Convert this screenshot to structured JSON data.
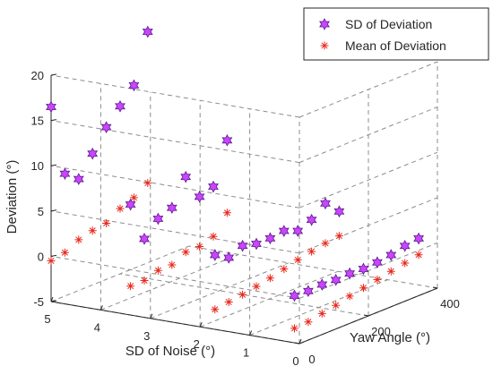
{
  "chart_data": {
    "type": "scatter",
    "projection": "3d",
    "title": "",
    "xlabel": "SD of Noise (°)",
    "ylabel": "Yaw Angle (°)",
    "zlabel": "Deviation (°)",
    "xlim": [
      0,
      5
    ],
    "ylim": [
      0,
      400
    ],
    "zlim": [
      -5,
      20
    ],
    "xticks": [
      "0",
      "1",
      "2",
      "3",
      "4",
      "5"
    ],
    "yticks": [
      "0",
      "200",
      "400"
    ],
    "zticks": [
      "-5",
      "0",
      "5",
      "10",
      "15",
      "20"
    ],
    "grid": true,
    "legend_position": "top-right",
    "colors": {
      "sd": "#cc44ff",
      "sd_edge": "#5a1a8c",
      "mean": "#e8291c",
      "axis": "#262626",
      "grid": "#8c8c8c"
    },
    "series": [
      {
        "name": "SD of Deviation",
        "marker": "hexagram",
        "points": [
          [
            5,
            0,
            16.5
          ],
          [
            5,
            40,
            8.5
          ],
          [
            5,
            80,
            7.3
          ],
          [
            5,
            120,
            9.5
          ],
          [
            5,
            160,
            11.8
          ],
          [
            5,
            200,
            13.5
          ],
          [
            5,
            240,
            15.2
          ],
          [
            5,
            280,
            20.5
          ],
          [
            3.4,
            0,
            7.2
          ],
          [
            3.4,
            40,
            2.8
          ],
          [
            3.4,
            80,
            4.4
          ],
          [
            3.4,
            120,
            5.0
          ],
          [
            3.4,
            160,
            7.8
          ],
          [
            3.4,
            200,
            5.0
          ],
          [
            3.4,
            240,
            5.5
          ],
          [
            3.4,
            280,
            10.0
          ],
          [
            1.7,
            0,
            3.2
          ],
          [
            1.7,
            40,
            2.3
          ],
          [
            1.7,
            80,
            3.0
          ],
          [
            1.7,
            120,
            2.6
          ],
          [
            1.7,
            160,
            2.6
          ],
          [
            1.7,
            200,
            2.8
          ],
          [
            1.7,
            240,
            2.2
          ],
          [
            1.7,
            280,
            2.8
          ],
          [
            1.7,
            320,
            4.0
          ],
          [
            1.7,
            360,
            2.5
          ],
          [
            0.1,
            0,
            0.2
          ],
          [
            0.1,
            40,
            0.1
          ],
          [
            0.1,
            80,
            0.2
          ],
          [
            0.1,
            120,
            0.1
          ],
          [
            0.1,
            160,
            0.2
          ],
          [
            0.1,
            200,
            0.1
          ],
          [
            0.1,
            240,
            0.2
          ],
          [
            0.1,
            280,
            0.4
          ],
          [
            0.1,
            320,
            0.8
          ],
          [
            0.1,
            360,
            1.0
          ]
        ]
      },
      {
        "name": "Mean of Deviation",
        "marker": "asterisk",
        "points": [
          [
            5,
            0,
            -0.5
          ],
          [
            5,
            40,
            -0.2
          ],
          [
            5,
            80,
            0.6
          ],
          [
            5,
            120,
            1.0
          ],
          [
            5,
            160,
            1.2
          ],
          [
            5,
            200,
            2.2
          ],
          [
            5,
            240,
            2.8
          ],
          [
            5,
            280,
            3.8
          ],
          [
            3.4,
            0,
            -1.8
          ],
          [
            3.4,
            40,
            -1.8
          ],
          [
            3.4,
            80,
            -1.3
          ],
          [
            3.4,
            120,
            -1.3
          ],
          [
            3.4,
            160,
            -0.5
          ],
          [
            3.4,
            200,
            -0.5
          ],
          [
            3.4,
            240,
            0.0
          ],
          [
            3.4,
            280,
            2.0
          ],
          [
            1.7,
            0,
            -2.8
          ],
          [
            1.7,
            40,
            -2.6
          ],
          [
            1.7,
            80,
            -2.4
          ],
          [
            1.7,
            120,
            -2.1
          ],
          [
            1.7,
            160,
            -1.8
          ],
          [
            1.7,
            200,
            -1.4
          ],
          [
            1.7,
            240,
            -1.0
          ],
          [
            1.7,
            280,
            -0.7
          ],
          [
            1.7,
            320,
            -0.4
          ],
          [
            1.7,
            360,
            -0.2
          ],
          [
            0.1,
            0,
            -3.4
          ],
          [
            0.1,
            40,
            -3.3
          ],
          [
            0.1,
            80,
            -3.0
          ],
          [
            0.1,
            120,
            -2.7
          ],
          [
            0.1,
            160,
            -2.3
          ],
          [
            0.1,
            200,
            -2.0
          ],
          [
            0.1,
            240,
            -1.7
          ],
          [
            0.1,
            280,
            -1.4
          ],
          [
            0.1,
            320,
            -1.1
          ],
          [
            0.1,
            360,
            -0.8
          ]
        ]
      }
    ]
  }
}
